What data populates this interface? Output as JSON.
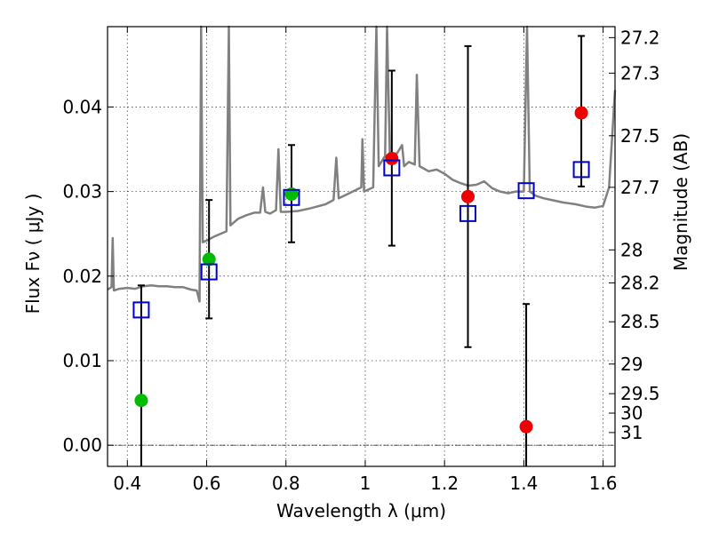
{
  "chart_data": {
    "type": "scatter",
    "xlabel": "Wavelength  λ (μm)",
    "ylabel": "Flux  Fν  ( μJy )",
    "ylabel_right": "Magnitude (AB)",
    "xlim": [
      0.35,
      1.63
    ],
    "ylim": [
      -0.0025,
      0.0495
    ],
    "x_ticks": [
      0.4,
      0.6,
      0.8,
      1.0,
      1.2,
      1.4,
      1.6
    ],
    "x_tick_labels": [
      "0.4",
      "0.6",
      "0.8",
      "1",
      "1.2",
      "1.4",
      "1.6"
    ],
    "y_ticks": [
      0.0,
      0.01,
      0.02,
      0.03,
      0.04
    ],
    "y_tick_labels": [
      "0.00",
      "0.01",
      "0.02",
      "0.03",
      "0.04"
    ],
    "right_ticks": [
      {
        "label": "27.2",
        "flux": 0.0482
      },
      {
        "label": "27.3",
        "flux": 0.044
      },
      {
        "label": "27.5",
        "flux": 0.0366
      },
      {
        "label": "27.7",
        "flux": 0.0305
      },
      {
        "label": "28",
        "flux": 0.0231
      },
      {
        "label": "28.2",
        "flux": 0.0192
      },
      {
        "label": "28.5",
        "flux": 0.0146
      },
      {
        "label": "29",
        "flux": 0.0096
      },
      {
        "label": "29.5",
        "flux": 0.0061
      },
      {
        "label": "30",
        "flux": 0.0038
      },
      {
        "label": "31",
        "flux": 0.0015
      }
    ],
    "grid": true,
    "series": [
      {
        "marker": "circle",
        "color": "#00bb00",
        "points": [
          {
            "x": 0.435,
            "y": 0.0053
          },
          {
            "x": 0.606,
            "y": 0.022
          },
          {
            "x": 0.814,
            "y": 0.0297
          }
        ]
      },
      {
        "marker": "circle",
        "color": "#ee0000",
        "points": [
          {
            "x": 1.067,
            "y": 0.0339
          },
          {
            "x": 1.259,
            "y": 0.0294
          },
          {
            "x": 1.406,
            "y": 0.0022
          },
          {
            "x": 1.545,
            "y": 0.0393
          }
        ]
      },
      {
        "marker": "open-square",
        "color": "#0000cc",
        "points": [
          {
            "x": 0.435,
            "y": 0.016
          },
          {
            "x": 0.606,
            "y": 0.0205
          },
          {
            "x": 0.814,
            "y": 0.0293
          },
          {
            "x": 1.067,
            "y": 0.0328
          },
          {
            "x": 1.259,
            "y": 0.0274
          },
          {
            "x": 1.406,
            "y": 0.0301
          },
          {
            "x": 1.545,
            "y": 0.0326
          }
        ]
      }
    ],
    "error_bars": [
      {
        "x": 0.435,
        "ylow": -0.0025,
        "yhigh": 0.0189
      },
      {
        "x": 0.606,
        "ylow": 0.015,
        "yhigh": 0.029
      },
      {
        "x": 0.814,
        "ylow": 0.024,
        "yhigh": 0.0355
      },
      {
        "x": 1.067,
        "ylow": 0.0236,
        "yhigh": 0.0443
      },
      {
        "x": 1.259,
        "ylow": 0.0116,
        "yhigh": 0.0472
      },
      {
        "x": 1.406,
        "ylow": -0.0025,
        "yhigh": 0.0167
      },
      {
        "x": 1.545,
        "ylow": 0.0306,
        "yhigh": 0.0484
      }
    ],
    "spectrum": {
      "color": "#808080",
      "points": [
        [
          0.35,
          0.0184
        ],
        [
          0.36,
          0.0187
        ],
        [
          0.363,
          0.0245
        ],
        [
          0.366,
          0.0183
        ],
        [
          0.38,
          0.0185
        ],
        [
          0.4,
          0.0186
        ],
        [
          0.42,
          0.0185
        ],
        [
          0.44,
          0.0188
        ],
        [
          0.46,
          0.0189
        ],
        [
          0.48,
          0.0188
        ],
        [
          0.5,
          0.0188
        ],
        [
          0.52,
          0.0187
        ],
        [
          0.54,
          0.0187
        ],
        [
          0.56,
          0.0184
        ],
        [
          0.575,
          0.0183
        ],
        [
          0.582,
          0.017
        ],
        [
          0.586,
          0.0495
        ],
        [
          0.59,
          0.024
        ],
        [
          0.6,
          0.0242
        ],
        [
          0.62,
          0.0247
        ],
        [
          0.65,
          0.0253
        ],
        [
          0.656,
          0.0495
        ],
        [
          0.66,
          0.026
        ],
        [
          0.68,
          0.0268
        ],
        [
          0.7,
          0.0272
        ],
        [
          0.72,
          0.0275
        ],
        [
          0.735,
          0.0275
        ],
        [
          0.742,
          0.0305
        ],
        [
          0.748,
          0.0276
        ],
        [
          0.76,
          0.0274
        ],
        [
          0.775,
          0.0278
        ],
        [
          0.781,
          0.035
        ],
        [
          0.787,
          0.0276
        ],
        [
          0.8,
          0.0276
        ],
        [
          0.83,
          0.0277
        ],
        [
          0.86,
          0.028
        ],
        [
          0.9,
          0.0285
        ],
        [
          0.92,
          0.029
        ],
        [
          0.927,
          0.034
        ],
        [
          0.933,
          0.0292
        ],
        [
          0.96,
          0.0298
        ],
        [
          0.99,
          0.0305
        ],
        [
          0.993,
          0.0362
        ],
        [
          0.997,
          0.03
        ],
        [
          1.02,
          0.0305
        ],
        [
          1.028,
          0.0495
        ],
        [
          1.034,
          0.033
        ],
        [
          1.05,
          0.0342
        ],
        [
          1.055,
          0.0495
        ],
        [
          1.062,
          0.0345
        ],
        [
          1.08,
          0.0345
        ],
        [
          1.093,
          0.0355
        ],
        [
          1.098,
          0.033
        ],
        [
          1.11,
          0.0335
        ],
        [
          1.125,
          0.0332
        ],
        [
          1.13,
          0.0438
        ],
        [
          1.137,
          0.033
        ],
        [
          1.16,
          0.0324
        ],
        [
          1.18,
          0.0326
        ],
        [
          1.2,
          0.0321
        ],
        [
          1.22,
          0.0314
        ],
        [
          1.24,
          0.031
        ],
        [
          1.26,
          0.0307
        ],
        [
          1.28,
          0.0308
        ],
        [
          1.3,
          0.0312
        ],
        [
          1.32,
          0.0304
        ],
        [
          1.34,
          0.03
        ],
        [
          1.36,
          0.0298
        ],
        [
          1.38,
          0.03
        ],
        [
          1.4,
          0.03
        ],
        [
          1.408,
          0.0495
        ],
        [
          1.415,
          0.03
        ],
        [
          1.43,
          0.0295
        ],
        [
          1.45,
          0.0292
        ],
        [
          1.47,
          0.029
        ],
        [
          1.5,
          0.0287
        ],
        [
          1.53,
          0.0285
        ],
        [
          1.56,
          0.0282
        ],
        [
          1.58,
          0.0281
        ],
        [
          1.6,
          0.0283
        ],
        [
          1.615,
          0.0305
        ],
        [
          1.63,
          0.042
        ]
      ]
    }
  }
}
